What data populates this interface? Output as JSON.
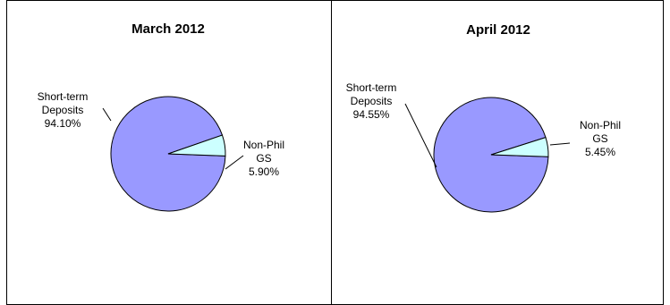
{
  "chart_data": [
    {
      "type": "pie",
      "title": "March 2012",
      "slices": [
        {
          "label_lines": [
            "Short-term",
            "Deposits",
            "94.10%"
          ],
          "value": 94.1,
          "color": "#9999ff"
        },
        {
          "label_lines": [
            "Non-Phil",
            "GS",
            "5.90%"
          ],
          "value": 5.9,
          "color": "#ccffff"
        }
      ]
    },
    {
      "type": "pie",
      "title": "April 2012",
      "slices": [
        {
          "label_lines": [
            "Short-term",
            "Deposits",
            "94.55%"
          ],
          "value": 94.55,
          "color": "#9999ff"
        },
        {
          "label_lines": [
            "Non-Phil",
            "GS",
            "5.45%"
          ],
          "value": 5.45,
          "color": "#ccffff"
        }
      ]
    }
  ]
}
